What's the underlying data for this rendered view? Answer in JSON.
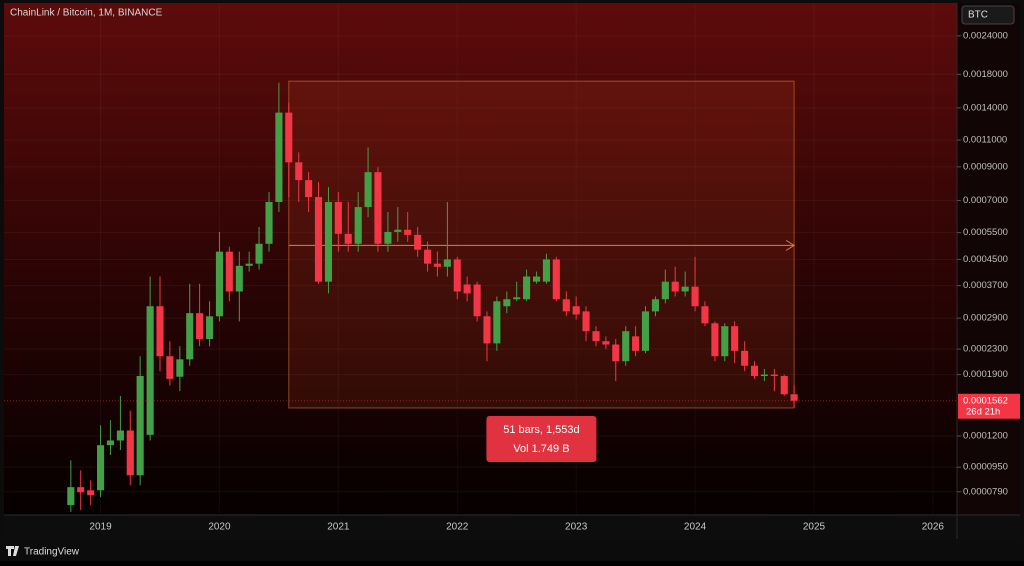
{
  "chart_data": {
    "type": "candlestick",
    "title": "ChainLink / Bitcoin, 1M, BINANCE",
    "currency": "BTC",
    "log_scale": true,
    "grid": true,
    "up_color": "#43a047",
    "down_color": "#f23645",
    "x": [
      2018.75,
      2018.833,
      2018.917,
      2019,
      2019.083,
      2019.167,
      2019.25,
      2019.333,
      2019.417,
      2019.5,
      2019.583,
      2019.667,
      2019.75,
      2019.833,
      2019.917,
      2020,
      2020.083,
      2020.167,
      2020.25,
      2020.333,
      2020.417,
      2020.5,
      2020.583,
      2020.667,
      2020.75,
      2020.833,
      2020.917,
      2021,
      2021.083,
      2021.167,
      2021.25,
      2021.333,
      2021.417,
      2021.5,
      2021.583,
      2021.667,
      2021.75,
      2021.833,
      2021.917,
      2022,
      2022.083,
      2022.167,
      2022.25,
      2022.333,
      2022.417,
      2022.5,
      2022.583,
      2022.667,
      2022.75,
      2022.833,
      2022.917,
      2023,
      2023.083,
      2023.167,
      2023.25,
      2023.333,
      2023.417,
      2023.5,
      2023.583,
      2023.667,
      2023.75,
      2023.833,
      2023.917,
      2024,
      2024.083,
      2024.167,
      2024.25,
      2024.333,
      2024.417,
      2024.5,
      2024.583,
      2024.667,
      2024.75,
      2024.833
    ],
    "open": [
      7.15e-05,
      8.18e-05,
      7.99e-05,
      7.99e-05,
      0.000112,
      0.000116,
      0.000125,
      8.94e-05,
      0.000121,
      0.000317,
      0.000218,
      0.000187,
      0.000213,
      0.000301,
      0.000248,
      0.000294,
      0.000477,
      0.000354,
      0.000429,
      0.000436,
      0.000506,
      0.000692,
      0.001351,
      0.000931,
      0.000815,
      0.000718,
      0.000381,
      0.000692,
      0.000545,
      0.000506,
      0.000666,
      0.000865,
      0.000506,
      0.000553,
      0.000562,
      0.000541,
      0.000484,
      0.000436,
      0.000426,
      0.00045,
      0.000373,
      0.000373,
      0.000294,
      0.00024,
      0.000317,
      0.000334,
      0.000334,
      0.000381,
      0.000381,
      0.00045,
      0.000334,
      0.000317,
      0.000305,
      0.000263,
      0.000244,
      0.000238,
      0.00021,
      0.000253,
      0.000227,
      0.000305,
      0.000334,
      0.000381,
      0.000354,
      0.000367,
      0.000317,
      0.000279,
      0.000218,
      0.000273,
      0.000227,
      0.000203,
      0.000188,
      0.00019,
      0.000188,
      0.000164
    ],
    "high": [
      0.0001,
      9.28e-05,
      8.61e-05,
      0.00013,
      0.000135,
      0.000162,
      0.000145,
      0.000218,
      0.000396,
      0.000396,
      0.000244,
      0.000235,
      0.000375,
      0.000375,
      0.000329,
      0.000553,
      0.000495,
      0.000477,
      0.000477,
      0.000574,
      0.000745,
      0.00169,
      0.001456,
      0.001003,
      0.000865,
      0.000803,
      0.000773,
      0.000745,
      0.000692,
      0.000745,
      0.001041,
      0.000897,
      0.000642,
      0.000666,
      0.000642,
      0.000574,
      0.000514,
      0.000477,
      0.000692,
      0.000459,
      0.000396,
      0.000381,
      0.000305,
      0.000341,
      0.000354,
      0.000381,
      0.000417,
      0.000411,
      0.00047,
      0.000459,
      0.000354,
      0.000341,
      0.000317,
      0.000273,
      0.000253,
      0.000248,
      0.000273,
      0.000273,
      0.000317,
      0.000341,
      0.000417,
      0.000426,
      0.000411,
      0.000459,
      0.000329,
      0.000283,
      0.000279,
      0.000283,
      0.000244,
      0.00021,
      0.000198,
      0.000198,
      0.00019,
      0.000175
    ],
    "low": [
      6.79e-05,
      6.89e-05,
      7.15e-05,
      7.59e-05,
      0.000104,
      0.000108,
      8.3e-05,
      8.3e-05,
      0.000116,
      0.000195,
      0.000175,
      0.000168,
      0.000203,
      0.000235,
      0.000235,
      0.000283,
      0.000329,
      0.000283,
      0.000411,
      0.000417,
      0.000477,
      0.000642,
      0.000718,
      0.000692,
      0.000642,
      0.000375,
      0.000349,
      0.000477,
      0.000477,
      0.000477,
      0.000618,
      0.000477,
      0.000477,
      0.000514,
      0.000514,
      0.000459,
      0.000411,
      0.000396,
      0.000396,
      0.000334,
      0.000329,
      0.000283,
      0.00021,
      0.000227,
      0.000301,
      0.000329,
      0.000329,
      0.000375,
      0.000375,
      0.000329,
      0.000294,
      0.000287,
      0.000244,
      0.000235,
      0.00023,
      0.000181,
      0.000203,
      0.000218,
      0.000223,
      0.000294,
      0.000324,
      0.000341,
      0.000341,
      0.000305,
      0.000273,
      0.00021,
      0.00021,
      0.000207,
      0.000195,
      0.000184,
      0.000181,
      0.000168,
      0.000162,
      0.000148
    ],
    "close": [
      8.18e-05,
      7.87e-05,
      7.7e-05,
      0.000112,
      0.000116,
      0.000125,
      8.94e-05,
      0.000188,
      0.000317,
      0.000218,
      0.000184,
      0.000213,
      0.000301,
      0.000248,
      0.000294,
      0.000477,
      0.000354,
      0.000429,
      0.000436,
      0.000506,
      0.000692,
      0.001351,
      0.000931,
      0.000815,
      0.000718,
      0.000381,
      0.000692,
      0.000545,
      0.000506,
      0.000666,
      0.000865,
      0.000506,
      0.000553,
      0.000562,
      0.000541,
      0.000484,
      0.000436,
      0.000426,
      0.00045,
      0.000354,
      0.000349,
      0.000294,
      0.00024,
      0.000329,
      0.000334,
      0.000339,
      0.000396,
      0.000396,
      0.00045,
      0.000334,
      0.000305,
      0.000298,
      0.000263,
      0.000244,
      0.000238,
      0.00021,
      0.000263,
      0.000227,
      0.000305,
      0.000334,
      0.000381,
      0.000354,
      0.000367,
      0.000317,
      0.000279,
      0.000218,
      0.000273,
      0.000227,
      0.000203,
      0.000188,
      0.00019,
      0.000188,
      0.000164,
      0.0001562
    ],
    "xlim": [
      2018.188,
      2026.203
    ],
    "xticks": [
      2019,
      2020,
      2021,
      2022,
      2023,
      2024,
      2025,
      2026
    ],
    "ylim": [
      6.64e-05,
      0.00307
    ],
    "yticks": [
      {
        "value": 0.0024,
        "label": "0.0024000"
      },
      {
        "value": 0.0018,
        "label": "0.0018000"
      },
      {
        "value": 0.0014,
        "label": "0.0014000"
      },
      {
        "value": 0.0011,
        "label": "0.0011000"
      },
      {
        "value": 0.0009,
        "label": "0.0009000"
      },
      {
        "value": 0.0007,
        "label": "0.0007000"
      },
      {
        "value": 0.00055,
        "label": "0.0005500"
      },
      {
        "value": 0.00045,
        "label": "0.0004500"
      },
      {
        "value": 0.00037,
        "label": "0.0003700"
      },
      {
        "value": 0.00029,
        "label": "0.0002900"
      },
      {
        "value": 0.00023,
        "label": "0.0002300"
      },
      {
        "value": 0.00019,
        "label": "0.0001900"
      },
      {
        "value": 0.00012,
        "label": "0.0001200"
      },
      {
        "value": 9.5e-05,
        "label": "0.0000950"
      },
      {
        "value": 7.9e-05,
        "label": "0.0000790"
      }
    ],
    "last_price": 0.0001562,
    "countdown": "26d 21h",
    "measure": {
      "from": 2020.583,
      "to": 2024.833,
      "high": 0.00171,
      "low": 0.000148,
      "arrow_price": 0.0005,
      "bars_label": "51 bars, 1,553d",
      "volume_label": "Vol 1.749 B"
    }
  },
  "footer": "TradingView"
}
